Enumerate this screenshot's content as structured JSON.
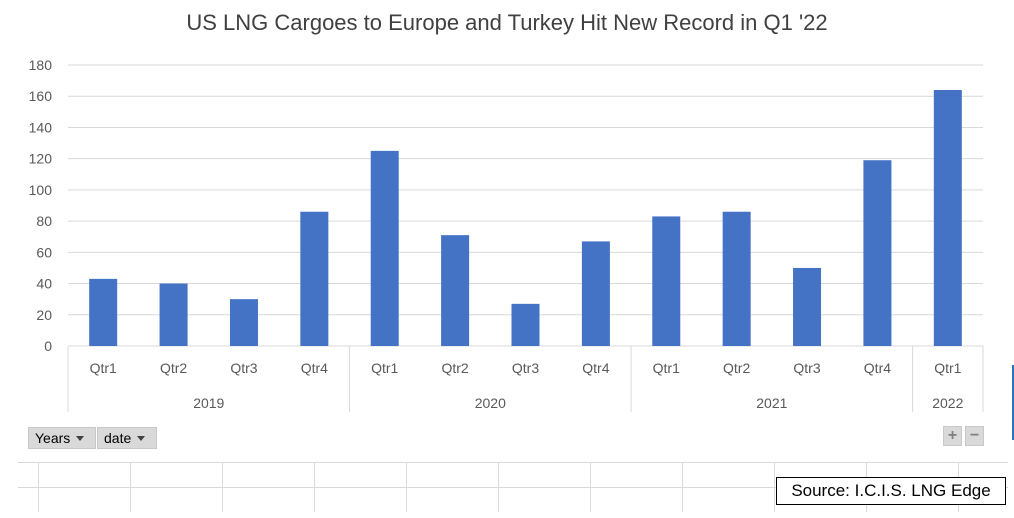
{
  "chart_data": {
    "type": "bar",
    "title": "US LNG Cargoes to Europe and Turkey Hit New Record in Q1 '22",
    "ylim": [
      0,
      180
    ],
    "yticks": [
      0,
      20,
      40,
      60,
      80,
      100,
      120,
      140,
      160,
      180
    ],
    "grid": true,
    "bar_color": "#4472c4",
    "categories": [
      "Qtr1",
      "Qtr2",
      "Qtr3",
      "Qtr4",
      "Qtr1",
      "Qtr2",
      "Qtr3",
      "Qtr4",
      "Qtr1",
      "Qtr2",
      "Qtr3",
      "Qtr4",
      "Qtr1"
    ],
    "groups": [
      {
        "label": "2019",
        "count": 4
      },
      {
        "label": "2020",
        "count": 4
      },
      {
        "label": "2021",
        "count": 4
      },
      {
        "label": "2022",
        "count": 1
      }
    ],
    "values": [
      43,
      40,
      30,
      86,
      125,
      71,
      27,
      67,
      83,
      86,
      50,
      119,
      164
    ]
  },
  "pivot_buttons": {
    "years": "Years",
    "date": "date"
  },
  "zoom": {
    "plus": "+",
    "minus": "−"
  },
  "source": "Source: I.C.I.S. LNG Edge"
}
